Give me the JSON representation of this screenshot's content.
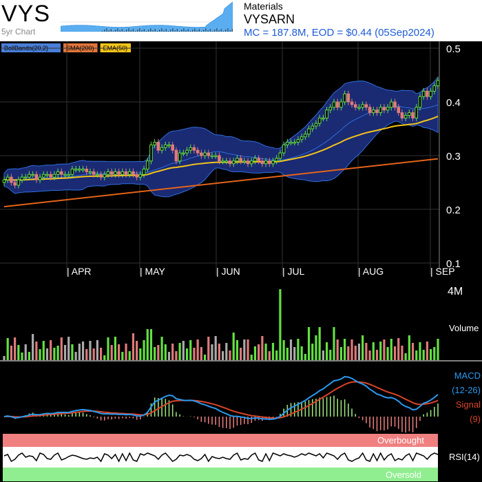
{
  "header": {
    "ticker": "VYS",
    "spark_label": "5yr Chart",
    "sector": "Materials",
    "name": "VYSARN",
    "market_info": "MC = 187.8M, EOD = $0.44 (05Sep2024)"
  },
  "legend": [
    {
      "label": "BollBands(20,2)",
      "color": "#2f6fde"
    },
    {
      "label": "SMA(200)",
      "color": "#e5641a"
    },
    {
      "label": "EMA(50)",
      "color": "#f5c518"
    }
  ],
  "chart_data": [
    {
      "type": "candlestick",
      "months": [
        "APR",
        "MAY",
        "JUN",
        "JUL",
        "AUG",
        "SEP"
      ],
      "y_ticks": [
        "0.5",
        "0.4",
        "0.3",
        "0.2",
        "0.1"
      ],
      "ylim": [
        0.1,
        0.5
      ],
      "close": [
        0.255,
        0.26,
        0.25,
        0.245,
        0.255,
        0.26,
        0.26,
        0.265,
        0.265,
        0.255,
        0.26,
        0.265,
        0.265,
        0.26,
        0.265,
        0.27,
        0.265,
        0.265,
        0.265,
        0.275,
        0.275,
        0.275,
        0.275,
        0.27,
        0.27,
        0.265,
        0.265,
        0.26,
        0.265,
        0.27,
        0.265,
        0.27,
        0.265,
        0.27,
        0.265,
        0.27,
        0.265,
        0.26,
        0.265,
        0.275,
        0.29,
        0.32,
        0.325,
        0.31,
        0.315,
        0.32,
        0.32,
        0.31,
        0.29,
        0.305,
        0.305,
        0.31,
        0.315,
        0.31,
        0.305,
        0.3,
        0.305,
        0.3,
        0.3,
        0.3,
        0.29,
        0.29,
        0.29,
        0.285,
        0.29,
        0.295,
        0.29,
        0.29,
        0.285,
        0.29,
        0.295,
        0.29,
        0.285,
        0.29,
        0.285,
        0.29,
        0.295,
        0.305,
        0.32,
        0.325,
        0.325,
        0.325,
        0.33,
        0.335,
        0.34,
        0.35,
        0.355,
        0.36,
        0.37,
        0.37,
        0.385,
        0.39,
        0.4,
        0.39,
        0.4,
        0.415,
        0.4,
        0.395,
        0.39,
        0.39,
        0.395,
        0.39,
        0.38,
        0.385,
        0.38,
        0.39,
        0.385,
        0.39,
        0.4,
        0.39,
        0.38,
        0.37,
        0.375,
        0.38,
        0.37,
        0.39,
        0.41,
        0.42,
        0.41,
        0.42,
        0.43,
        0.44
      ],
      "volume_max_label": "4M",
      "volume_label": "Volume",
      "macd_label": "MACD",
      "macd_params": "(12-26)",
      "signal_label": "Signal",
      "signal_params": "(9)",
      "rsi_label": "RSI(14)",
      "overbought_label": "Overbought",
      "oversold_label": "Oversold"
    }
  ],
  "colors": {
    "up": "#63e043",
    "down": "#e07a7a",
    "bb_fill": "#1a2a73",
    "bb_line": "#2f6fde",
    "sma200": "#e5641a",
    "ema50": "#f5c518",
    "macd": "#2b9af0",
    "signal": "#d9452a"
  }
}
